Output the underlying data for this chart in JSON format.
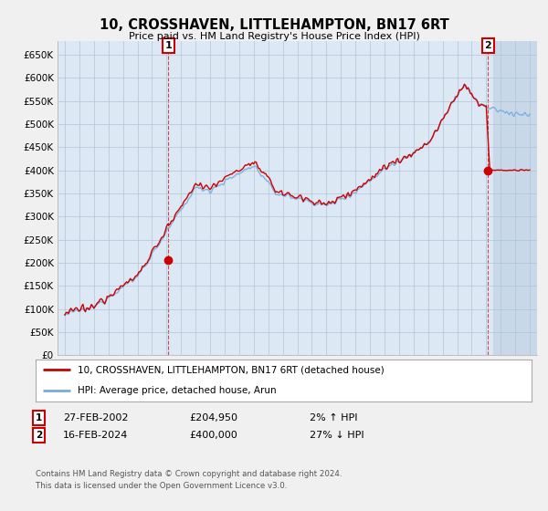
{
  "title": "10, CROSSHAVEN, LITTLEHAMPTON, BN17 6RT",
  "subtitle": "Price paid vs. HM Land Registry's House Price Index (HPI)",
  "legend_line1": "10, CROSSHAVEN, LITTLEHAMPTON, BN17 6RT (detached house)",
  "legend_line2": "HPI: Average price, detached house, Arun",
  "annotation1": {
    "label": "1",
    "date": "27-FEB-2002",
    "price": "£204,950",
    "change": "2% ↑ HPI"
  },
  "annotation2": {
    "label": "2",
    "date": "16-FEB-2024",
    "price": "£400,000",
    "change": "27% ↓ HPI"
  },
  "footer1": "Contains HM Land Registry data © Crown copyright and database right 2024.",
  "footer2": "This data is licensed under the Open Government Licence v3.0.",
  "sale1_x": 2002.12,
  "sale1_y": 204950,
  "sale2_x": 2024.12,
  "sale2_y": 400000,
  "hpi_color": "#7aabdc",
  "price_color": "#cc0000",
  "background_color": "#f0f0f0",
  "plot_bg_color": "#dce9f5",
  "xlim": [
    1994.5,
    2027.5
  ],
  "ylim": [
    0,
    680000
  ],
  "yticks": [
    0,
    50000,
    100000,
    150000,
    200000,
    250000,
    300000,
    350000,
    400000,
    450000,
    500000,
    550000,
    600000,
    650000
  ],
  "hatch_start": 2024.5
}
